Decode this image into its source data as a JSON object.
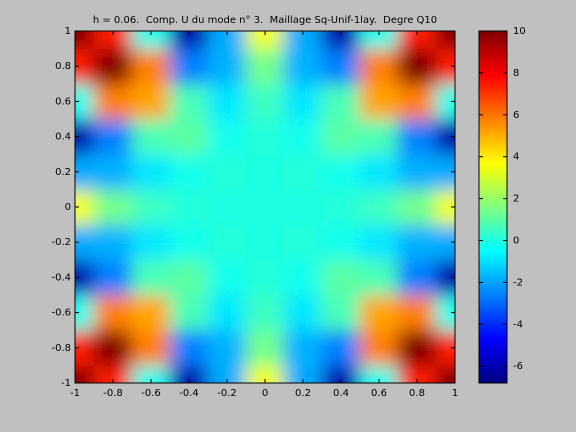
{
  "chart_data": {
    "type": "heatmap",
    "title": "h = 0.06.  Comp. U du mode n° 3.  Maillage Sq-Unif-1lay.  Degre Q10",
    "colormap": "jet",
    "x": [
      -1,
      -0.8,
      -0.6,
      -0.4,
      -0.2,
      0,
      0.2,
      0.4,
      0.6,
      0.8,
      1
    ],
    "y": [
      -1,
      -0.8,
      -0.6,
      -0.4,
      -0.2,
      0,
      0.2,
      0.4,
      0.6,
      0.8,
      1
    ],
    "z": [
      [
        10,
        7.4,
        -0.2,
        -6.1,
        -1.9,
        3.5,
        -1.9,
        -6.1,
        -0.2,
        7.4,
        10
      ],
      [
        7.4,
        10,
        5.8,
        -2.6,
        -1.8,
        1.4,
        -1.8,
        -2.6,
        5.8,
        10,
        7.4
      ],
      [
        -0.2,
        5.8,
        5.2,
        0.7,
        -0.9,
        0.5,
        -0.9,
        0.7,
        5.2,
        5.8,
        -0.2
      ],
      [
        -6.1,
        -2.6,
        0.7,
        1.0,
        -0.2,
        0.1,
        -0.2,
        1.0,
        0.7,
        -2.6,
        -6.1
      ],
      [
        -1.9,
        -1.8,
        -0.9,
        -0.2,
        0.1,
        0,
        0.1,
        -0.2,
        -0.9,
        -1.8,
        -1.9
      ],
      [
        3.5,
        1.4,
        0.5,
        0.1,
        0,
        0,
        0,
        0.1,
        0.5,
        1.4,
        3.5
      ],
      [
        -1.9,
        -1.8,
        -0.9,
        -0.2,
        0.1,
        0,
        0.1,
        -0.2,
        -0.9,
        -1.8,
        -1.9
      ],
      [
        -6.1,
        -2.6,
        0.7,
        1.0,
        -0.2,
        0.1,
        -0.2,
        1.0,
        0.7,
        -2.6,
        -6.1
      ],
      [
        -0.2,
        5.8,
        5.2,
        0.7,
        -0.9,
        0.5,
        -0.9,
        0.7,
        5.2,
        5.8,
        -0.2
      ],
      [
        7.4,
        10,
        5.8,
        -2.6,
        -1.8,
        1.4,
        -1.8,
        -2.6,
        5.8,
        10,
        7.4
      ],
      [
        10,
        7.4,
        -0.2,
        -6.1,
        -1.9,
        3.5,
        -1.9,
        -6.1,
        -0.2,
        7.4,
        10
      ]
    ],
    "xlim": [
      -1,
      1
    ],
    "ylim": [
      -1,
      1
    ],
    "xticks": [
      -1,
      -0.8,
      -0.6,
      -0.4,
      -0.2,
      0,
      0.2,
      0.4,
      0.6,
      0.8,
      1
    ],
    "yticks": [
      -1,
      -0.8,
      -0.6,
      -0.4,
      -0.2,
      0,
      0.2,
      0.4,
      0.6,
      0.8,
      1
    ],
    "clim": [
      -6.8,
      10
    ],
    "cticks": [
      -6,
      -4,
      -2,
      0,
      2,
      4,
      6,
      8,
      10
    ]
  }
}
